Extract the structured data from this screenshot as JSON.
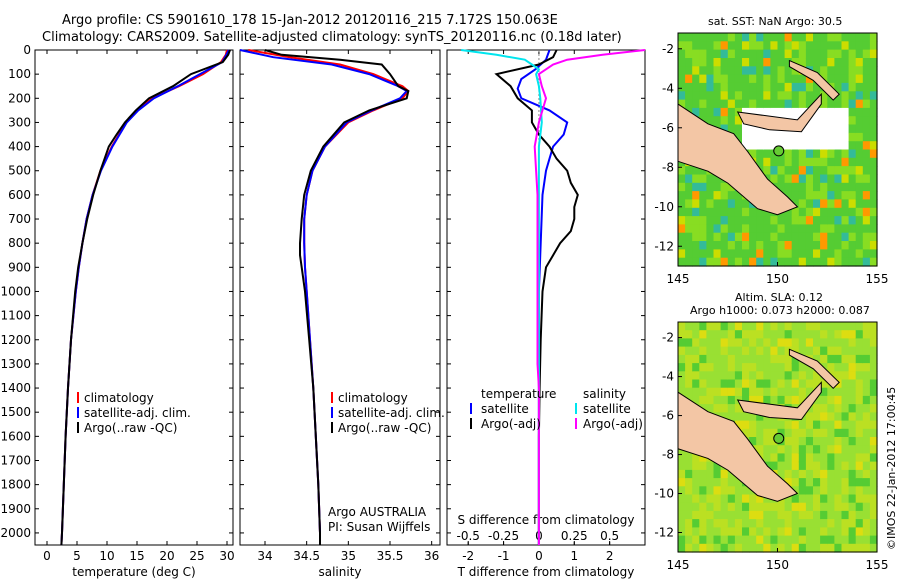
{
  "title_line1": "Argo profile: CS 5901610_178 15-Jan-2012 20120116_215 7.172S 150.063E",
  "title_line2": "Climatology: CARS2009. Satellite-adjusted climatology: synTS_20120116.nc (0.18d later)",
  "colors": {
    "climatology": "#ff0000",
    "satellite": "#0000ff",
    "argo": "#000000",
    "sat_s": "#00e5ee",
    "argo_s": "#ff00ff"
  },
  "chart_data": [
    {
      "type": "line",
      "xlabel": "temperature (deg C)",
      "ylabel": "",
      "xlim": [
        -2,
        31
      ],
      "ylim": [
        0,
        2050
      ],
      "xticks": [
        0,
        5,
        10,
        15,
        20,
        25,
        30
      ],
      "yticks": [
        0,
        100,
        200,
        300,
        400,
        500,
        600,
        700,
        800,
        900,
        1000,
        1100,
        1200,
        1300,
        1400,
        1500,
        1600,
        1700,
        1800,
        1900,
        2000
      ],
      "legend": [
        "climatology",
        "satellite-adj. clim.",
        "Argo(..raw -QC)"
      ],
      "legend_position": "lower-right",
      "series": [
        {
          "name": "climatology",
          "y": [
            0,
            20,
            50,
            100,
            150,
            200,
            250,
            300,
            400,
            500,
            600,
            700,
            800,
            900,
            1000,
            1200,
            1400,
            1600,
            1800,
            2000,
            2050
          ],
          "x": [
            30.0,
            29.8,
            29.0,
            26.0,
            22.0,
            17.5,
            15.0,
            13.2,
            10.8,
            8.9,
            7.6,
            6.6,
            5.9,
            5.3,
            4.8,
            4.0,
            3.5,
            3.1,
            2.8,
            2.5,
            2.4
          ]
        },
        {
          "name": "satellite-adj. clim.",
          "y": [
            0,
            20,
            50,
            100,
            150,
            200,
            250,
            300,
            400,
            500,
            600,
            700,
            800,
            900,
            1000,
            1200,
            1400,
            1600,
            1800,
            2000,
            2050
          ],
          "x": [
            30.3,
            29.9,
            29.2,
            25.5,
            21.8,
            17.8,
            15.2,
            13.3,
            10.9,
            9.0,
            7.6,
            6.6,
            5.9,
            5.3,
            4.8,
            4.0,
            3.5,
            3.1,
            2.8,
            2.5,
            2.4
          ]
        },
        {
          "name": "Argo(..raw -QC)",
          "y": [
            0,
            20,
            50,
            100,
            150,
            200,
            250,
            300,
            350,
            400,
            450,
            500,
            600,
            700,
            800,
            900,
            1000,
            1200,
            1400,
            1600,
            1800,
            2000,
            2050
          ],
          "x": [
            30.5,
            30.2,
            29.3,
            24.0,
            21.0,
            17.0,
            14.8,
            13.0,
            11.6,
            10.3,
            9.6,
            8.9,
            7.7,
            6.7,
            5.9,
            5.2,
            4.7,
            4.0,
            3.5,
            3.1,
            2.8,
            2.5,
            2.4
          ]
        }
      ]
    },
    {
      "type": "line",
      "xlabel": "salinity",
      "ylabel": "",
      "xlim": [
        33.7,
        36.1
      ],
      "ylim": [
        0,
        2050
      ],
      "xticks": [
        34,
        34.5,
        35,
        35.5,
        36
      ],
      "legend": [
        "climatology",
        "satellite-adj. clim.",
        "Argo(..raw -QC)"
      ],
      "legend_position": "lower-right",
      "series": [
        {
          "name": "climatology",
          "y": [
            0,
            30,
            60,
            100,
            150,
            170,
            200,
            250,
            300,
            400,
            500,
            600,
            700,
            800,
            900,
            1000,
            1200,
            1400,
            1600,
            1800,
            2000,
            2050
          ],
          "x": [
            33.8,
            34.3,
            34.9,
            35.3,
            35.65,
            35.72,
            35.65,
            35.3,
            35.0,
            34.72,
            34.57,
            34.5,
            34.47,
            34.47,
            34.48,
            34.5,
            34.54,
            34.58,
            34.61,
            34.64,
            34.66,
            34.66
          ]
        },
        {
          "name": "satellite-adj. clim.",
          "y": [
            0,
            30,
            60,
            100,
            150,
            170,
            200,
            250,
            300,
            400,
            500,
            600,
            700,
            800,
            900,
            1000,
            1200,
            1400,
            1600,
            1800,
            2000,
            2050
          ],
          "x": [
            33.7,
            34.1,
            34.8,
            35.25,
            35.6,
            35.7,
            35.62,
            35.28,
            34.98,
            34.72,
            34.57,
            34.5,
            34.47,
            34.47,
            34.48,
            34.5,
            34.54,
            34.58,
            34.61,
            34.64,
            34.66,
            34.66
          ]
        },
        {
          "name": "Argo(..raw -QC)",
          "y": [
            0,
            20,
            40,
            60,
            100,
            150,
            170,
            200,
            250,
            300,
            400,
            500,
            600,
            700,
            800,
            850,
            900,
            1000,
            1200,
            1400,
            1600,
            1800,
            2000,
            2050
          ],
          "x": [
            34.0,
            34.2,
            34.9,
            35.4,
            35.5,
            35.6,
            35.72,
            35.7,
            35.25,
            34.95,
            34.7,
            34.55,
            34.47,
            34.44,
            34.42,
            34.42,
            34.44,
            34.48,
            34.53,
            34.58,
            34.61,
            34.64,
            34.66,
            34.66
          ]
        }
      ],
      "annotations": [
        "Argo AUSTRALIA",
        "PI: Susan Wijffels"
      ]
    },
    {
      "type": "line",
      "xlabel": "T difference from climatology",
      "x2label": "S difference from climatology",
      "ylabel": "",
      "xlim": [
        -2.6,
        3.0
      ],
      "xticks": [
        -2,
        -1,
        0,
        1,
        2
      ],
      "x2ticks": [
        "-0.5",
        "-0.25",
        "0",
        "0.25",
        "0.5"
      ],
      "x2lim": [
        -0.65,
        0.75
      ],
      "legend": [
        "temperature",
        "satellite",
        "Argo(-adj)",
        "salinity",
        "satellite",
        "Argo(-adj)"
      ],
      "legend_position": "lower",
      "series": [
        {
          "name": "satellite",
          "y": [
            0,
            40,
            80,
            120,
            160,
            200,
            250,
            300,
            350,
            400,
            450,
            500,
            600,
            800,
            1000,
            1200,
            1400,
            1600,
            1800,
            2000,
            2050
          ],
          "x": [
            0.3,
            0.2,
            -0.1,
            -0.5,
            -0.6,
            -0.5,
            0.3,
            0.8,
            0.7,
            0.4,
            0.3,
            0.2,
            0.1,
            0.05,
            0.0,
            0.0,
            0.0,
            0.0,
            0.0,
            0.0,
            0.0
          ]
        },
        {
          "name": "Argo(-adj)",
          "y": [
            0,
            30,
            60,
            100,
            150,
            200,
            250,
            300,
            350,
            400,
            450,
            500,
            550,
            600,
            650,
            700,
            750,
            800,
            850,
            900,
            1000,
            1200,
            1400,
            1600,
            1800,
            2000,
            2050
          ],
          "x": [
            0.5,
            0.4,
            0.0,
            -1.2,
            -0.8,
            -0.6,
            -0.2,
            -0.2,
            0.0,
            0.3,
            0.5,
            0.8,
            0.9,
            1.1,
            1.0,
            1.0,
            0.9,
            0.6,
            0.4,
            0.2,
            0.1,
            0.05,
            0.02,
            0.0,
            0.0,
            0.0,
            0.0
          ]
        }
      ],
      "series_s": [
        {
          "name": "satellite",
          "y": [
            0,
            20,
            40,
            60,
            80,
            100,
            150,
            200,
            300,
            400,
            600,
            800,
            1000,
            1400,
            2000,
            2050
          ],
          "x": [
            -0.55,
            -0.3,
            -0.1,
            -0.05,
            0.0,
            -0.02,
            0.0,
            0.01,
            0.02,
            0.0,
            0.0,
            0.0,
            0.0,
            0.0,
            0.0,
            0.0
          ]
        },
        {
          "name": "Argo(-adj)",
          "y": [
            0,
            20,
            40,
            60,
            80,
            100,
            150,
            200,
            300,
            400,
            500,
            600,
            800,
            1000,
            1200,
            1300,
            1400,
            2000,
            2050
          ],
          "x": [
            0.75,
            0.45,
            0.2,
            0.1,
            0.05,
            0.0,
            0.02,
            0.05,
            0.0,
            -0.03,
            -0.02,
            -0.01,
            -0.01,
            -0.01,
            -0.01,
            -0.01,
            0.0,
            0.0,
            0.0
          ]
        }
      ]
    }
  ],
  "map1": {
    "title": "sat. SST: NaN Argo: 30.5",
    "xticks": [
      "145",
      "150",
      "155"
    ],
    "yticks": [
      "-2",
      "-4",
      "-6",
      "-8",
      "-10",
      "-12"
    ],
    "marker": {
      "lon": 150.063,
      "lat": -7.172
    }
  },
  "map2": {
    "title_line1": "Altim. SLA: 0.12",
    "title_line2": "Argo h1000: 0.073 h2000: 0.087",
    "xticks": [
      "145",
      "150",
      "155"
    ],
    "yticks": [
      "-2",
      "-4",
      "-6",
      "-8",
      "-10",
      "-12"
    ],
    "marker": {
      "lon": 150.063,
      "lat": -7.172
    }
  },
  "credit": "©IMOS 22-Jan-2012 17:00:45",
  "legend_labels": {
    "clim": "climatology",
    "sat": "satellite-adj. clim.",
    "argo": "Argo(..raw -QC)",
    "temperature": "temperature",
    "salinity": "salinity",
    "satellite": "satellite",
    "argo_adj": "Argo(-adj)"
  }
}
